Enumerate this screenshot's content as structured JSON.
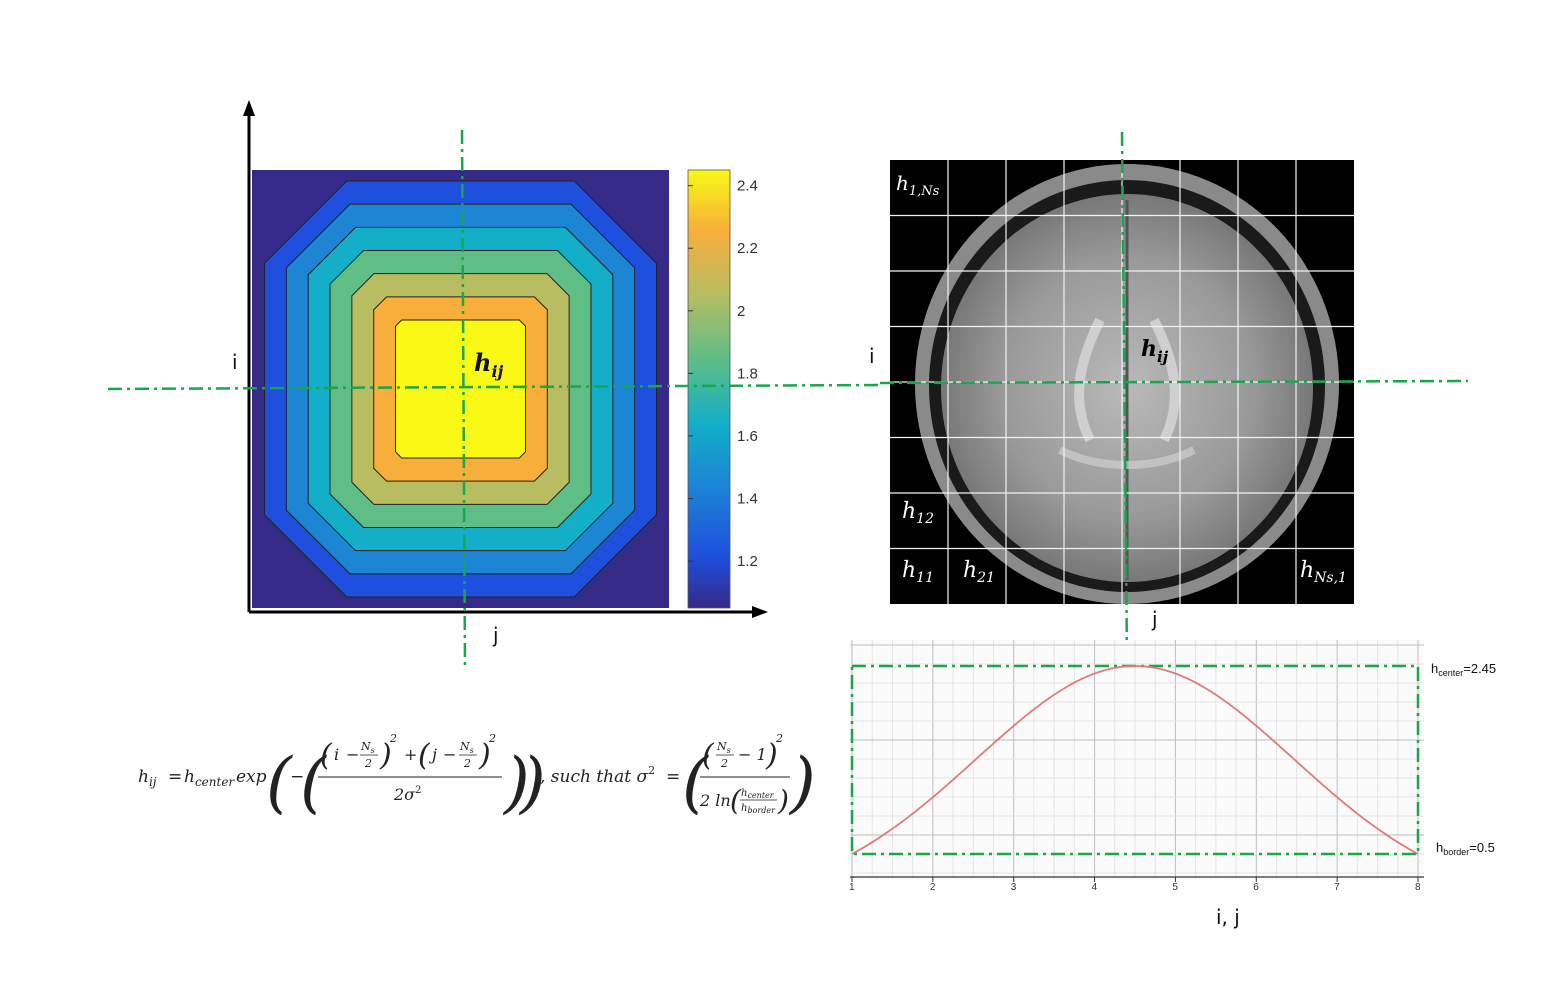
{
  "heatmap": {
    "row_axis_label": "i",
    "col_axis_label": "j",
    "center_label": "h",
    "center_subscript": "ij",
    "colorbar_ticks": [
      "2.4",
      "2.2",
      "2",
      "1.8",
      "1.6",
      "1.4",
      "1.2"
    ],
    "colorbar_range": [
      1.05,
      2.45
    ],
    "contour_levels": [
      1.2,
      1.4,
      1.6,
      1.8,
      2.0,
      2.2,
      2.4
    ],
    "level_colors": [
      "#352a87",
      "#1e4fdd",
      "#1c85d4",
      "#13aec8",
      "#5fbe86",
      "#b9bd61",
      "#f7ae3b",
      "#f9f915"
    ]
  },
  "mri": {
    "row_axis_label": "i",
    "col_axis_label": "j",
    "grid_rows": 8,
    "grid_cols": 8,
    "cells": [
      {
        "base": "h",
        "sub": "1,Ns"
      },
      {
        "base": "h",
        "sub": "12"
      },
      {
        "base": "h",
        "sub": "11"
      },
      {
        "base": "h",
        "sub": "21"
      },
      {
        "base": "h",
        "sub": "Ns,1"
      }
    ],
    "center_label": "h",
    "center_subscript": "ij"
  },
  "chart_data": {
    "type": "line",
    "x_ticks": [
      "1",
      "2",
      "3",
      "4",
      "5",
      "6",
      "7",
      "8"
    ],
    "xlim": [
      1,
      8
    ],
    "ylim": [
      0.5,
      2.45
    ],
    "xlabel": "i, j",
    "series": [
      {
        "x": [
          1,
          1.5,
          2,
          2.5,
          3,
          3.5,
          4,
          4.5,
          5,
          5.5,
          6,
          6.5,
          7,
          7.5,
          8
        ],
        "y": [
          0.5,
          0.78,
          1.09,
          1.43,
          1.79,
          2.11,
          2.35,
          2.45,
          2.35,
          2.11,
          1.79,
          1.43,
          1.09,
          0.78,
          0.5
        ],
        "color": "#e07b7b"
      }
    ],
    "annotations": [
      {
        "base": "h",
        "sub": "center",
        "suffix": "=2.45"
      },
      {
        "base": "h",
        "sub": "border",
        "suffix": "=0.5"
      }
    ],
    "grid": true
  },
  "formula": {
    "lhs": "h",
    "lhs_sub": "ij",
    "eq": "=",
    "hcenter": "h",
    "hcenter_sub": "center",
    "exp": "exp",
    "minus": "−",
    "num_i": "i",
    "num_j": "j",
    "ns_num": "N",
    "ns_sub": "s",
    "two": "2",
    "plus": "+",
    "sq": "2",
    "denom": "2σ",
    "denom_sq": "2",
    "such_that": ", such  that  σ",
    "sigma_sq": "2",
    "eq2": "=",
    "minus_one": "− 1",
    "ln": "2 ln",
    "hcenter2": "h",
    "hcenter2_sub": "center",
    "hborder": "h",
    "hborder_sub": "border"
  },
  "colors": {
    "guide_green": "#1aa64b",
    "heatmap_bg": "#352a87",
    "grid_line": "#cfcfcf"
  }
}
